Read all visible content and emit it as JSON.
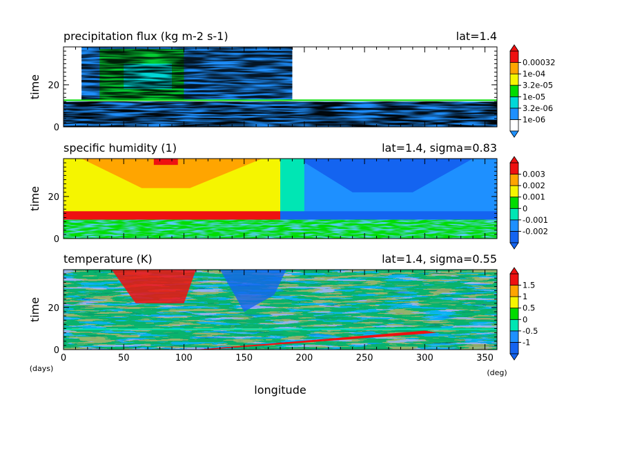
{
  "figure": {
    "xlabel": "longitude",
    "x_unit": "(deg)",
    "y_unit": "(days)"
  },
  "chart_data": [
    {
      "type": "heatmap",
      "title": "precipitation flux (kg m-2 s-1)",
      "title_right": "lat=1.4",
      "ylabel": "time",
      "xlim": [
        0,
        360
      ],
      "ylim": [
        0,
        38
      ],
      "x_ticks": [
        0,
        50,
        100,
        150,
        200,
        250,
        300,
        350
      ],
      "y_ticks": [
        0,
        20
      ],
      "colorbar": {
        "tick_labels": [
          "1e-06",
          "3.2e-06",
          "1e-05",
          "3.2e-05",
          "1e-04",
          "0.00032"
        ],
        "colors": [
          "#ffffff",
          "#1e90ff",
          "#00d8d8",
          "#00dd00",
          "#f5f500",
          "#ffa500",
          "#ee1111"
        ],
        "below_color": "#1e90ff",
        "above_color": "#ee1111"
      }
    },
    {
      "type": "heatmap",
      "title": "specific humidity (1)",
      "title_right": "lat=1.4, sigma=0.83",
      "ylabel": "time",
      "xlim": [
        0,
        360
      ],
      "ylim": [
        0,
        38
      ],
      "x_ticks": [
        0,
        50,
        100,
        150,
        200,
        250,
        300,
        350
      ],
      "y_ticks": [
        0,
        20
      ],
      "colorbar": {
        "tick_labels": [
          "-0.002",
          "-0.001",
          "0",
          "0.001",
          "0.002",
          "0.003"
        ],
        "colors": [
          "#1464f0",
          "#1e90ff",
          "#00e6b4",
          "#00dd00",
          "#f5f500",
          "#ffa500",
          "#ee1111"
        ],
        "below_color": "#1464f0",
        "above_color": "#ee1111"
      }
    },
    {
      "type": "heatmap",
      "title": "temperature (K)",
      "title_right": "lat=1.4, sigma=0.55",
      "ylabel": "time",
      "xlim": [
        0,
        360
      ],
      "ylim": [
        0,
        38
      ],
      "x_ticks": [
        0,
        50,
        100,
        150,
        200,
        250,
        300,
        350
      ],
      "y_ticks": [
        0,
        20
      ],
      "x_tick_labels": [
        "0",
        "50",
        "100",
        "150",
        "200",
        "250",
        "300",
        "350"
      ],
      "y_tick_labels": [
        "0",
        "20"
      ],
      "colorbar": {
        "tick_labels": [
          "-1",
          "-0.5",
          "0",
          "0.5",
          "1",
          "1.5"
        ],
        "colors": [
          "#1464f0",
          "#1e90ff",
          "#00e6b4",
          "#00dd00",
          "#f5f500",
          "#ffa500",
          "#ee1111"
        ],
        "below_color": "#1464f0",
        "above_color": "#ee1111"
      }
    }
  ]
}
